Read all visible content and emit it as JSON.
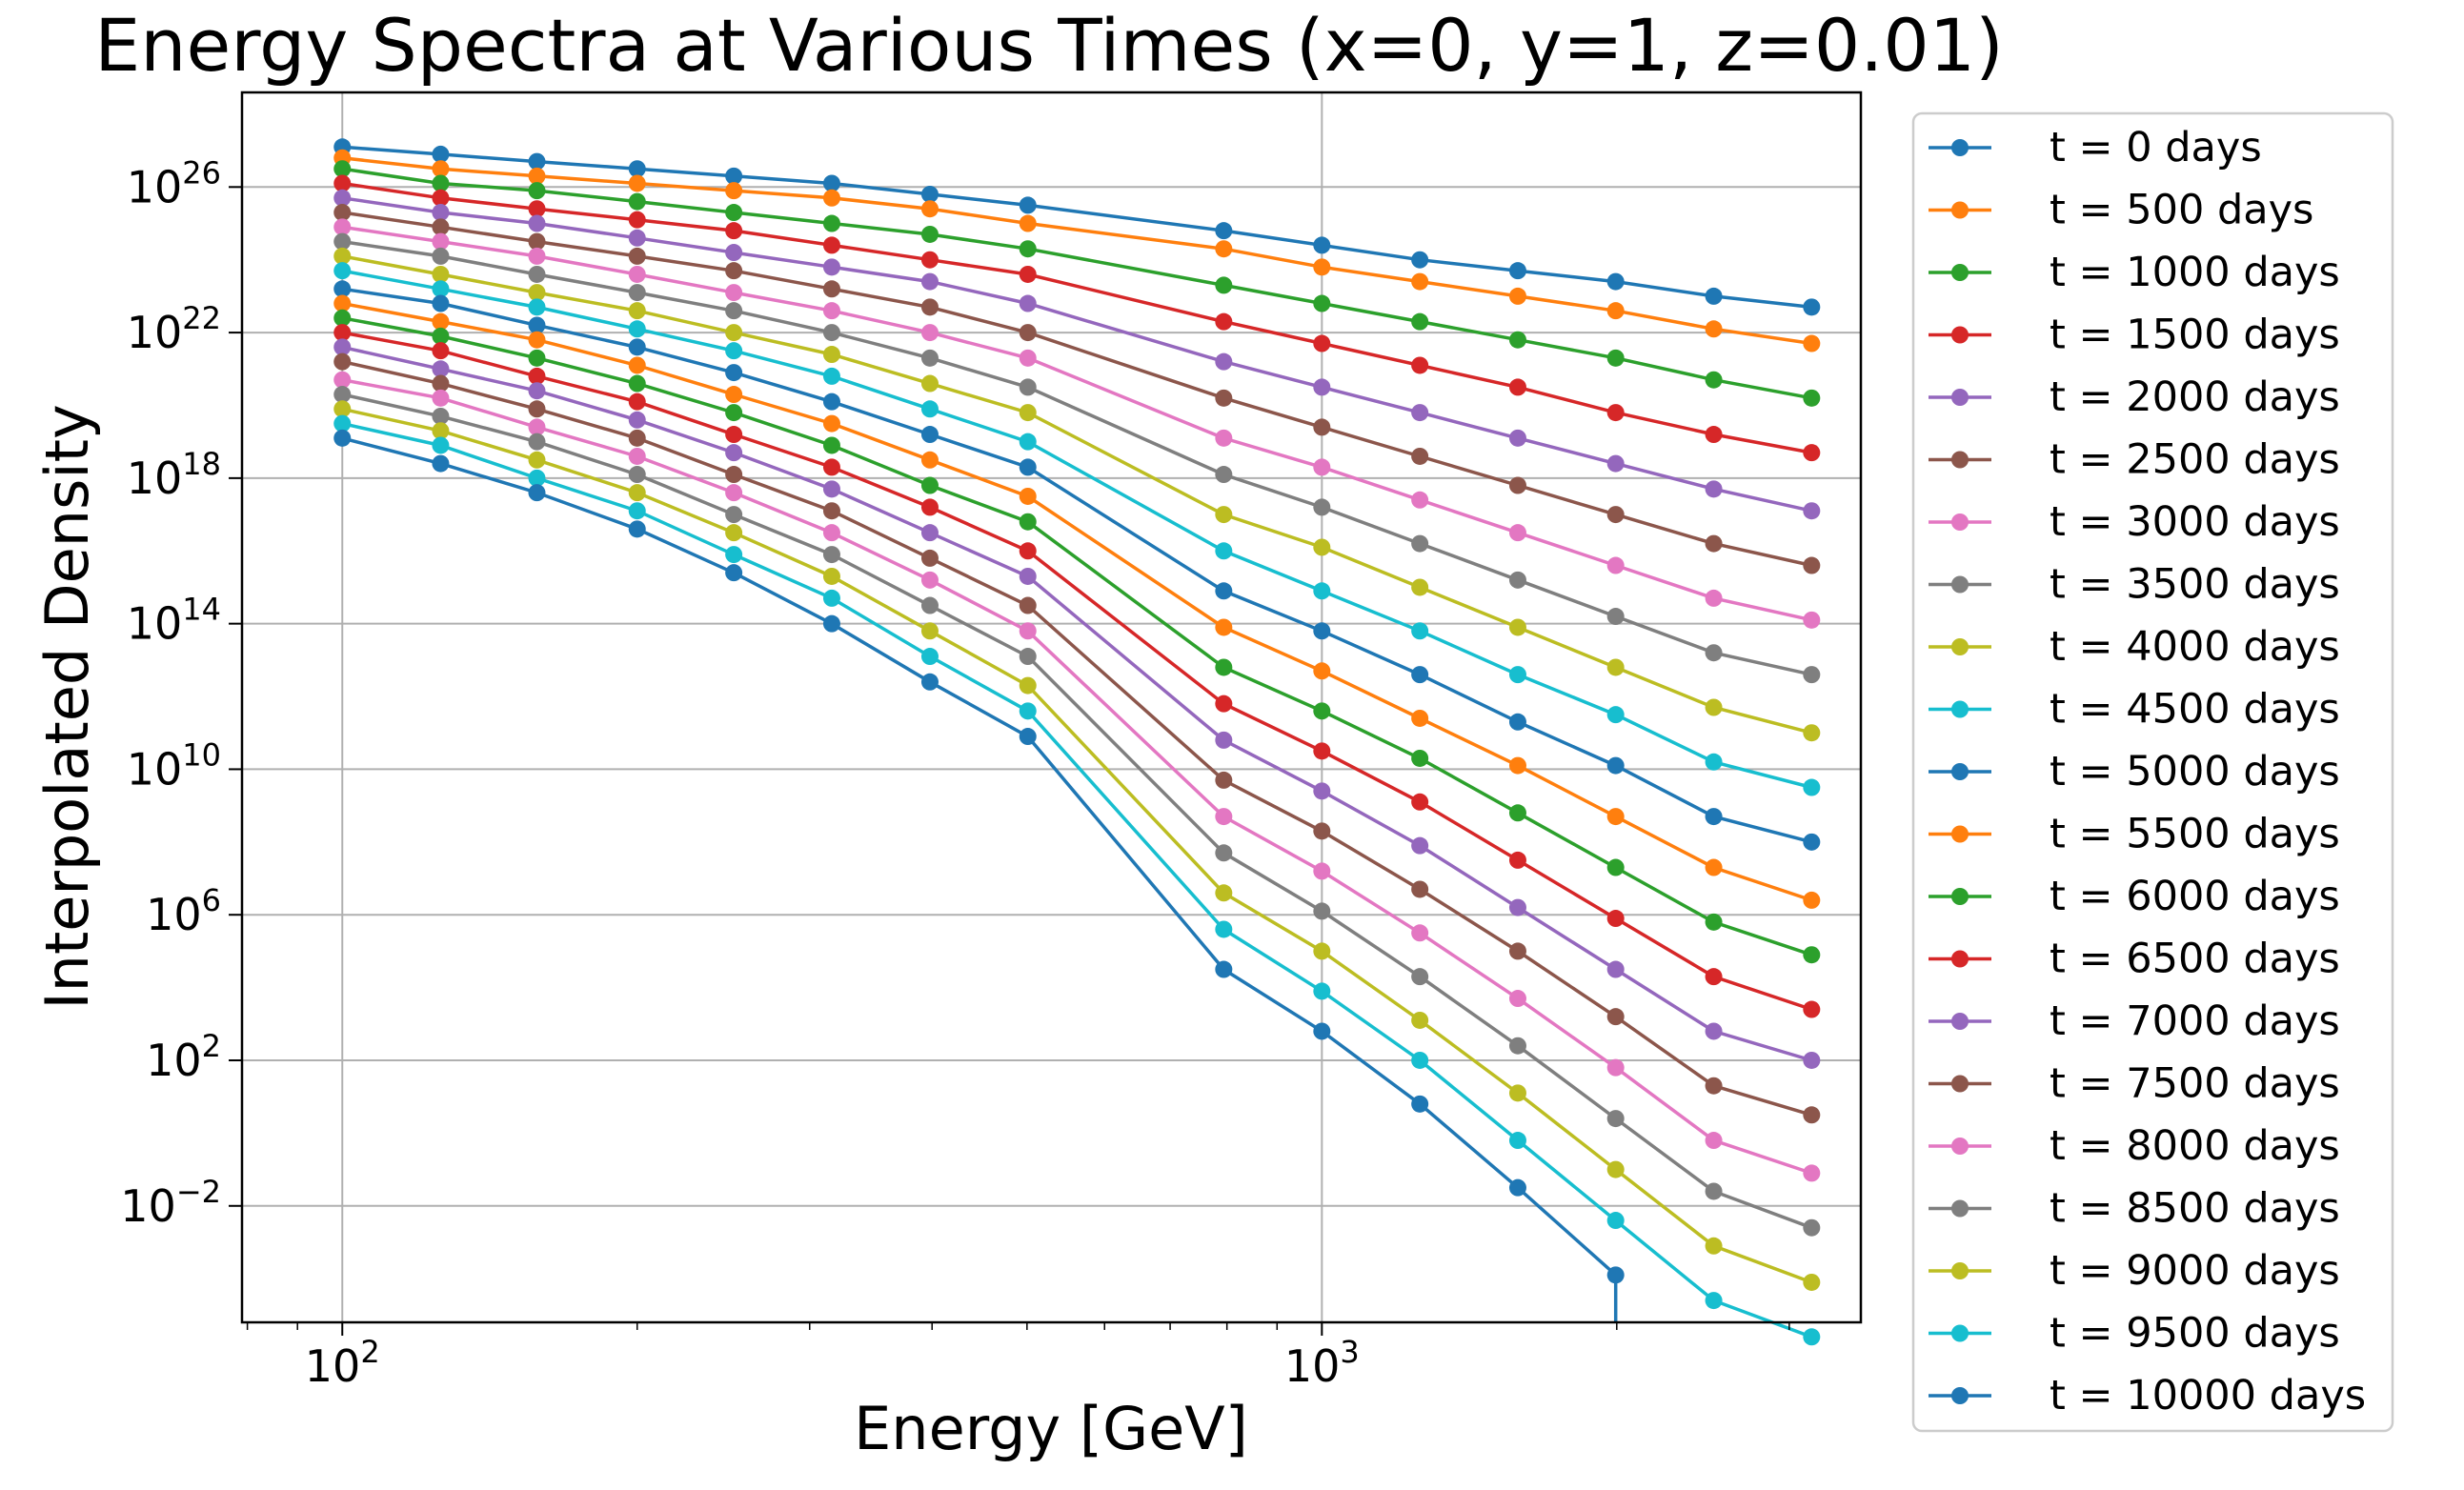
{
  "chart_data": {
    "type": "line",
    "title": "Energy Spectra at Various Times (x=0, y=1, z=0.01)",
    "xlabel": "Energy [GeV]",
    "ylabel": "Interpolated Density",
    "xscale": "log",
    "yscale": "log",
    "xlim": [
      79,
      3550
    ],
    "ylim_log10": [
      -5.2,
      28.6
    ],
    "grid": true,
    "legend_position": "right, outside plot",
    "x_ticks": [
      {
        "exp": "2",
        "value": 100
      },
      {
        "exp": "3",
        "value": 1000
      }
    ],
    "y_ticks": [
      {
        "exp": "26",
        "log10": 26
      },
      {
        "exp": "22",
        "log10": 22
      },
      {
        "exp": "18",
        "log10": 18
      },
      {
        "exp": "14",
        "log10": 14
      },
      {
        "exp": "10",
        "log10": 10
      },
      {
        "exp": "6",
        "log10": 6
      },
      {
        "exp": "2",
        "log10": 2
      },
      {
        "exp": "−2",
        "log10": -2
      }
    ],
    "x": [
      100,
      126,
      158,
      200,
      251,
      316,
      398,
      501,
      794,
      1000,
      1259,
      1585,
      1995,
      2512,
      3162
    ],
    "series_log10_y": [
      {
        "name": "t = 0 days",
        "color": "#1f77b4",
        "log10_values": [
          27.1,
          26.9,
          26.7,
          26.5,
          26.3,
          26.1,
          25.8,
          25.5,
          24.8,
          24.4,
          24.0,
          23.7,
          23.4,
          23.0,
          22.7
        ]
      },
      {
        "name": "t = 500 days",
        "color": "#ff7f0e",
        "log10_values": [
          26.8,
          26.5,
          26.3,
          26.1,
          25.9,
          25.7,
          25.4,
          25.0,
          24.3,
          23.8,
          23.4,
          23.0,
          22.6,
          22.1,
          21.7
        ]
      },
      {
        "name": "t = 1000 days",
        "color": "#2ca02c",
        "log10_values": [
          26.5,
          26.1,
          25.9,
          25.6,
          25.3,
          25.0,
          24.7,
          24.3,
          23.3,
          22.8,
          22.3,
          21.8,
          21.3,
          20.7,
          20.2
        ]
      },
      {
        "name": "t = 1500 days",
        "color": "#d62728",
        "log10_values": [
          26.1,
          25.7,
          25.4,
          25.1,
          24.8,
          24.4,
          24.0,
          23.6,
          22.3,
          21.7,
          21.1,
          20.5,
          19.8,
          19.2,
          18.7
        ]
      },
      {
        "name": "t = 2000 days",
        "color": "#9467bd",
        "log10_values": [
          25.7,
          25.3,
          25.0,
          24.6,
          24.2,
          23.8,
          23.4,
          22.8,
          21.2,
          20.5,
          19.8,
          19.1,
          18.4,
          17.7,
          17.1
        ]
      },
      {
        "name": "t = 2500 days",
        "color": "#8c564b",
        "log10_values": [
          25.3,
          24.9,
          24.5,
          24.1,
          23.7,
          23.2,
          22.7,
          22.0,
          20.2,
          19.4,
          18.6,
          17.8,
          17.0,
          16.2,
          15.6
        ]
      },
      {
        "name": "t = 3000 days",
        "color": "#e377c2",
        "log10_values": [
          24.9,
          24.5,
          24.1,
          23.6,
          23.1,
          22.6,
          22.0,
          21.3,
          19.1,
          18.3,
          17.4,
          16.5,
          15.6,
          14.7,
          14.1
        ]
      },
      {
        "name": "t = 3500 days",
        "color": "#7f7f7f",
        "log10_values": [
          24.5,
          24.1,
          23.6,
          23.1,
          22.6,
          22.0,
          21.3,
          20.5,
          18.1,
          17.2,
          16.2,
          15.2,
          14.2,
          13.2,
          12.6
        ]
      },
      {
        "name": "t = 4000 days",
        "color": "#bcbd22",
        "log10_values": [
          24.1,
          23.6,
          23.1,
          22.6,
          22.0,
          21.4,
          20.6,
          19.8,
          17.0,
          16.1,
          15.0,
          13.9,
          12.8,
          11.7,
          11.0
        ]
      },
      {
        "name": "t = 4500 days",
        "color": "#17becf",
        "log10_values": [
          23.7,
          23.2,
          22.7,
          22.1,
          21.5,
          20.8,
          19.9,
          19.0,
          16.0,
          14.9,
          13.8,
          12.6,
          11.5,
          10.2,
          9.5
        ]
      },
      {
        "name": "t = 5000 days",
        "color": "#1f77b4",
        "log10_values": [
          23.2,
          22.8,
          22.2,
          21.6,
          20.9,
          20.1,
          19.2,
          18.3,
          14.9,
          13.8,
          12.6,
          11.3,
          10.1,
          8.7,
          8.0
        ]
      },
      {
        "name": "t = 5500 days",
        "color": "#ff7f0e",
        "log10_values": [
          22.8,
          22.3,
          21.8,
          21.1,
          20.3,
          19.5,
          18.5,
          17.5,
          13.9,
          12.7,
          11.4,
          10.1,
          8.7,
          7.3,
          6.4
        ]
      },
      {
        "name": "t = 6000 days",
        "color": "#2ca02c",
        "log10_values": [
          22.4,
          21.9,
          21.3,
          20.6,
          19.8,
          18.9,
          17.8,
          16.8,
          12.8,
          11.6,
          10.3,
          8.8,
          7.3,
          5.8,
          4.9
        ]
      },
      {
        "name": "t = 6500 days",
        "color": "#d62728",
        "log10_values": [
          22.0,
          21.5,
          20.8,
          20.1,
          19.2,
          18.3,
          17.2,
          16.0,
          11.8,
          10.5,
          9.1,
          7.5,
          5.9,
          4.3,
          3.4
        ]
      },
      {
        "name": "t = 7000 days",
        "color": "#9467bd",
        "log10_values": [
          21.6,
          21.0,
          20.4,
          19.6,
          18.7,
          17.7,
          16.5,
          15.3,
          10.8,
          9.4,
          7.9,
          6.2,
          4.5,
          2.8,
          2.0
        ]
      },
      {
        "name": "t = 7500 days",
        "color": "#8c564b",
        "log10_values": [
          21.2,
          20.6,
          19.9,
          19.1,
          18.1,
          17.1,
          15.8,
          14.5,
          9.7,
          8.3,
          6.7,
          5.0,
          3.2,
          1.3,
          0.5
        ]
      },
      {
        "name": "t = 8000 days",
        "color": "#e377c2",
        "log10_values": [
          20.7,
          20.2,
          19.4,
          18.6,
          17.6,
          16.5,
          15.2,
          13.8,
          8.7,
          7.2,
          5.5,
          3.7,
          1.8,
          -0.2,
          -1.1
        ]
      },
      {
        "name": "t = 8500 days",
        "color": "#7f7f7f",
        "log10_values": [
          20.3,
          19.7,
          19.0,
          18.1,
          17.0,
          15.9,
          14.5,
          13.1,
          7.7,
          6.1,
          4.3,
          2.4,
          0.4,
          -1.6,
          -2.6
        ]
      },
      {
        "name": "t = 9000 days",
        "color": "#bcbd22",
        "log10_values": [
          19.9,
          19.3,
          18.5,
          17.6,
          16.5,
          15.3,
          13.8,
          12.3,
          6.6,
          5.0,
          3.1,
          1.1,
          -1.0,
          -3.1,
          -4.1
        ]
      },
      {
        "name": "t = 9500 days",
        "color": "#17becf",
        "log10_values": [
          19.5,
          18.9,
          18.0,
          17.1,
          15.9,
          14.7,
          13.1,
          11.6,
          5.6,
          3.9,
          2.0,
          -0.2,
          -2.4,
          -4.6,
          -5.6
        ]
      },
      {
        "name": "t = 10000 days",
        "color": "#1f77b4",
        "log10_values": [
          19.1,
          18.4,
          17.6,
          16.6,
          15.4,
          14.0,
          12.4,
          10.9,
          4.5,
          2.8,
          0.8,
          -1.5,
          -3.9,
          null,
          null
        ]
      }
    ]
  }
}
